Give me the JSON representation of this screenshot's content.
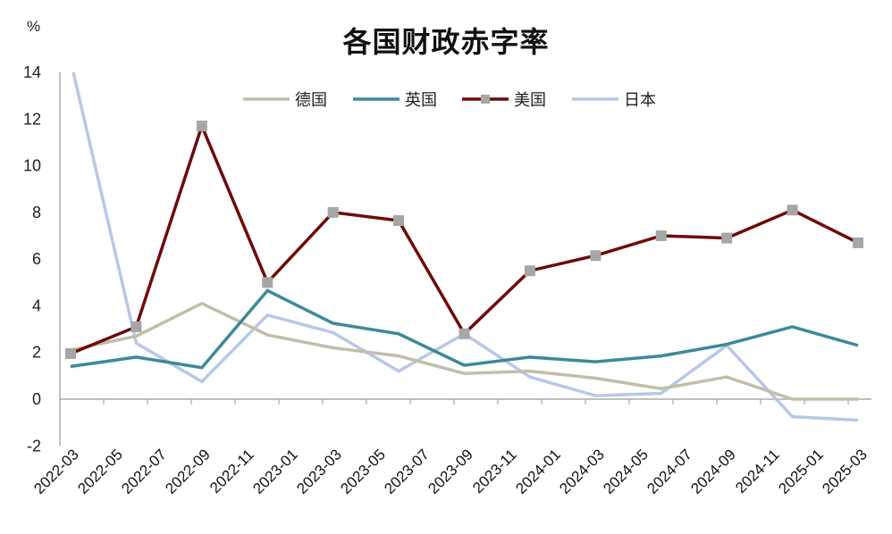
{
  "chart": {
    "title": "各国财政赤字率",
    "unit": "%"
  },
  "colors": {
    "germany": "#c0c0aa",
    "uk": "#3c8a96",
    "us": "#6e0a0a",
    "us_marker": "#a6a6a6",
    "japan": "#b8c8e4",
    "axis": "#999999"
  },
  "legend": [
    {
      "name": "德国",
      "key": "germany"
    },
    {
      "name": "英国",
      "key": "uk"
    },
    {
      "name": "美国",
      "key": "us"
    },
    {
      "name": "日本",
      "key": "japan"
    }
  ],
  "chart_data": {
    "type": "line",
    "title": "各国财政赤字率",
    "xlabel": "",
    "ylabel": "%",
    "ylim": [
      -2,
      14
    ],
    "yticks": [
      -2,
      0,
      2,
      4,
      6,
      8,
      10,
      12,
      14
    ],
    "grid": false,
    "legend_position": "top",
    "categories": [
      "2022-03",
      "2022-05",
      "2022-07",
      "2022-09",
      "2022-11",
      "2023-01",
      "2023-03",
      "2023-05",
      "2023-07",
      "2023-09",
      "2023-11",
      "2024-01",
      "2024-03",
      "2024-05",
      "2024-07",
      "2024-09",
      "2024-11",
      "2025-01",
      "2025-03"
    ],
    "x_points": [
      "2022-03",
      "2022-06",
      "2022-09",
      "2022-12",
      "2023-03",
      "2023-06",
      "2023-09",
      "2023-12",
      "2024-03",
      "2024-06",
      "2024-09",
      "2024-12",
      "2025-03"
    ],
    "series": [
      {
        "name": "德国",
        "values": [
          2.1,
          2.7,
          4.1,
          2.75,
          2.2,
          1.85,
          1.1,
          1.2,
          0.9,
          0.45,
          0.95,
          0.0,
          0.0
        ]
      },
      {
        "name": "英国",
        "values": [
          1.4,
          1.8,
          1.35,
          4.65,
          3.25,
          2.8,
          1.45,
          1.8,
          1.6,
          1.85,
          2.35,
          3.1,
          2.3
        ]
      },
      {
        "name": "美国",
        "values": [
          1.95,
          3.1,
          11.7,
          5.0,
          8.0,
          7.65,
          2.8,
          5.5,
          6.15,
          7.0,
          6.9,
          8.1,
          6.7
        ]
      },
      {
        "name": "日本",
        "values": [
          14.5,
          2.4,
          0.75,
          3.6,
          2.85,
          1.2,
          2.8,
          0.95,
          0.15,
          0.25,
          2.3,
          -0.75,
          -0.9
        ]
      }
    ]
  }
}
